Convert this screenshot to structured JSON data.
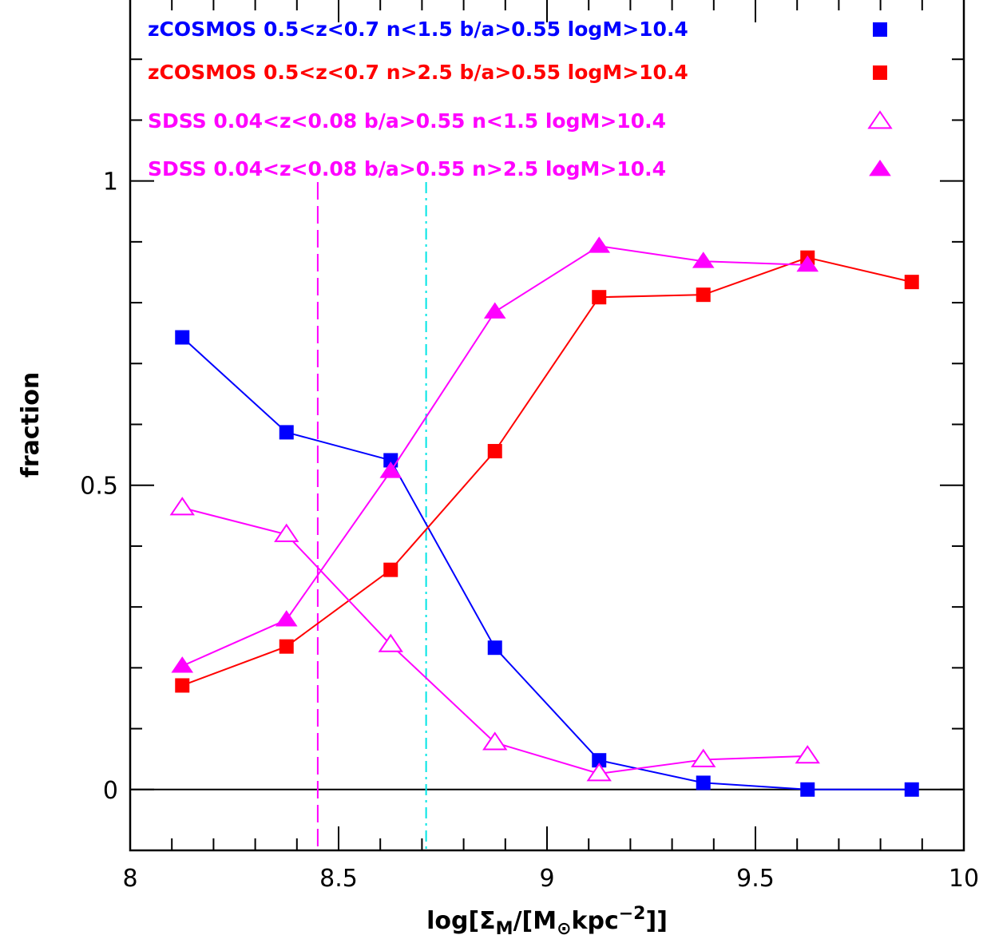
{
  "chart_data": {
    "type": "line",
    "xlim": [
      8,
      10
    ],
    "ylim": [
      -0.1,
      1.3
    ],
    "x_ticks": [
      8,
      8.5,
      9,
      9.5,
      10
    ],
    "x_tick_labels": [
      "8",
      "8.5",
      "9",
      "9.5",
      "10"
    ],
    "y_ticks": [
      0,
      0.5,
      1
    ],
    "y_tick_labels": [
      "0",
      "0.5",
      "1"
    ],
    "xlabel": "log[Σ_M/[M_⊙kpc^-2]]",
    "xlabel_parts": {
      "a": "log[Σ",
      "sub1": "M",
      "b": "/[M",
      "sub2": "⊙",
      "c": "kpc",
      "sup": "−2",
      "d": "]]"
    },
    "ylabel": "fraction",
    "grid": false,
    "legend_placement": "top",
    "zero_line": 0,
    "vertical_lines": [
      {
        "x": 8.45,
        "color": "#ff00ff",
        "style": "dashed"
      },
      {
        "x": 8.71,
        "color": "#00e5e5",
        "style": "dashdot"
      }
    ],
    "series": [
      {
        "name": "zCOSMOS 0.5<z<0.7 n<1.5 b/a>0.55 logM>10.4",
        "color": "#0000ff",
        "marker": "square-filled",
        "x": [
          8.125,
          8.375,
          8.625,
          8.875,
          9.125,
          9.375,
          9.625,
          9.875
        ],
        "y": [
          0.743,
          0.587,
          0.541,
          0.233,
          0.048,
          0.011,
          0.0,
          0.0
        ]
      },
      {
        "name": "zCOSMOS 0.5<z<0.7 n>2.5 b/a>0.55 logM>10.4",
        "color": "#ff0000",
        "marker": "square-filled",
        "x": [
          8.125,
          8.375,
          8.625,
          8.875,
          9.125,
          9.375,
          9.625,
          9.875
        ],
        "y": [
          0.171,
          0.235,
          0.361,
          0.556,
          0.809,
          0.813,
          0.874,
          0.834
        ]
      },
      {
        "name": "SDSS 0.04<z<0.08 b/a>0.55 n<1.5 logM>10.4",
        "color": "#ff00ff",
        "marker": "triangle-open",
        "x": [
          8.125,
          8.375,
          8.625,
          8.875,
          9.125,
          9.375,
          9.625
        ],
        "y": [
          0.463,
          0.419,
          0.238,
          0.077,
          0.026,
          0.049,
          0.055
        ]
      },
      {
        "name": "SDSS 0.04<z<0.08 b/a>0.55 n>2.5 logM>10.4",
        "color": "#ff00ff",
        "marker": "triangle-filled",
        "x": [
          8.125,
          8.375,
          8.625,
          8.875,
          9.125,
          9.375,
          9.625
        ],
        "y": [
          0.203,
          0.279,
          0.523,
          0.785,
          0.893,
          0.868,
          0.862
        ]
      }
    ]
  }
}
